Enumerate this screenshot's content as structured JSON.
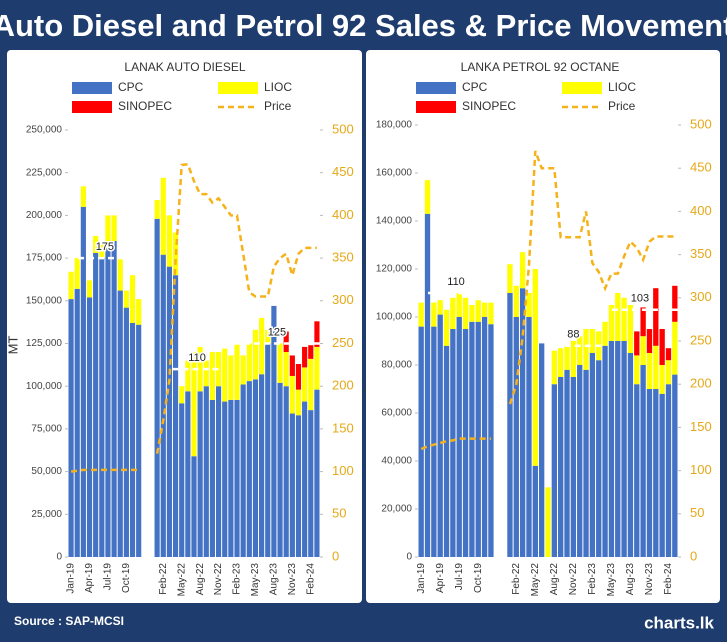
{
  "header": {
    "title": "Auto Diesel and Petrol 92 Sales & Price Movement"
  },
  "chart_data": [
    {
      "type": "bar",
      "stacked": true,
      "title": "LANAK AUTO DIESEL",
      "ylabel": "MT",
      "categories": [
        "Jan-19",
        null,
        null,
        "Apr-19",
        null,
        null,
        "Jul-19",
        null,
        null,
        "Oct-19",
        null,
        null,
        null,
        null,
        null,
        "Feb-22",
        null,
        null,
        "May-22",
        null,
        null,
        "Aug-22",
        null,
        null,
        "Nov-22",
        null,
        null,
        "Feb-23",
        null,
        null,
        "May-23",
        null,
        null,
        "Aug-23",
        null,
        null,
        "Nov-23",
        null,
        null,
        "Feb-24",
        null
      ],
      "series": [
        {
          "name": "CPC",
          "color": "#4472c4",
          "values": [
            151000,
            157000,
            205000,
            152000,
            178000,
            175000,
            183000,
            185000,
            156000,
            146000,
            137000,
            136000,
            null,
            null,
            198000,
            177000,
            170000,
            165000,
            90000,
            97000,
            59000,
            97000,
            100000,
            92000,
            100000,
            91000,
            92000,
            92000,
            101000,
            103000,
            104000,
            107000,
            125000,
            147000,
            102000,
            100000,
            84000,
            83000,
            91000,
            86000,
            98000
          ]
        },
        {
          "name": "LIOC",
          "color": "#ffff00",
          "values": [
            16000,
            18000,
            12000,
            10000,
            10000,
            10000,
            17000,
            15000,
            19000,
            10000,
            28000,
            15000,
            null,
            null,
            11000,
            45000,
            30000,
            25000,
            10000,
            18000,
            61000,
            26000,
            15000,
            28000,
            20000,
            31000,
            26000,
            33000,
            17000,
            22000,
            29000,
            33000,
            8000,
            0,
            23000,
            20000,
            22000,
            15000,
            20000,
            30000,
            25000
          ]
        },
        {
          "name": "SINOPEC",
          "color": "#ff0000",
          "values": [
            null,
            null,
            null,
            null,
            null,
            null,
            null,
            null,
            null,
            null,
            null,
            null,
            null,
            null,
            null,
            null,
            null,
            null,
            null,
            null,
            null,
            null,
            null,
            null,
            null,
            null,
            null,
            null,
            null,
            null,
            null,
            null,
            null,
            null,
            null,
            12000,
            12000,
            15000,
            12000,
            8000,
            15000
          ]
        },
        {
          "name": "Price",
          "type": "line",
          "dashed": true,
          "axis": "y2",
          "color": "#f5b21b",
          "values": [
            100,
            101,
            102,
            102,
            102,
            102,
            102,
            102,
            102,
            102,
            102,
            102,
            null,
            null,
            121,
            160,
            207,
            348,
            459,
            460,
            440,
            425,
            425,
            415,
            420,
            410,
            400,
            400,
            355,
            310,
            305,
            305,
            305,
            340,
            350,
            355,
            330,
            355,
            362,
            362,
            362
          ]
        }
      ],
      "ylim": [
        0,
        250000
      ],
      "yticks": [
        0,
        {
          "value": 25000,
          "label": "25,000"
        },
        {
          "value": 50000,
          "label": "50,000"
        },
        {
          "value": 75000,
          "label": "75,000"
        },
        {
          "value": 100000,
          "label": "100,000"
        },
        {
          "value": 125000,
          "label": "125,000"
        },
        {
          "value": 150000,
          "label": "150,000"
        },
        {
          "value": 175000,
          "label": "175,000"
        },
        {
          "value": 200000,
          "label": "200,000"
        },
        {
          "value": 225000,
          "label": "225,000"
        },
        {
          "value": 250000,
          "label": "250,000"
        }
      ],
      "y2lim": [
        0,
        500
      ],
      "y2ticks": [
        0,
        50,
        100,
        150,
        200,
        250,
        300,
        350,
        400,
        450,
        500
      ],
      "annotations": [
        {
          "value": 175000,
          "label": "175",
          "start": 0,
          "end": 11
        },
        {
          "value": 110000,
          "label": "110",
          "start": 17,
          "end": 24
        },
        {
          "value": 125000,
          "label": "125",
          "start": 27,
          "end": 40
        }
      ]
    },
    {
      "type": "bar",
      "stacked": true,
      "title": "LANKA PETROL 92 OCTANE",
      "categories": [
        "Jan-19",
        null,
        null,
        "Apr-19",
        null,
        null,
        "Jul-19",
        null,
        null,
        "Oct-19",
        null,
        null,
        null,
        null,
        null,
        "Feb-22",
        null,
        null,
        "May-22",
        null,
        null,
        "Aug-22",
        null,
        null,
        "Nov-22",
        null,
        null,
        "Feb-23",
        null,
        null,
        "May-23",
        null,
        null,
        "Aug-23",
        null,
        null,
        "Nov-23",
        null,
        null,
        "Feb-24",
        null
      ],
      "series": [
        {
          "name": "CPC",
          "color": "#4472c4",
          "values": [
            96000,
            143000,
            96000,
            101000,
            88000,
            95000,
            100000,
            95000,
            98000,
            98000,
            100000,
            97000,
            null,
            null,
            110000,
            100000,
            112000,
            100000,
            38000,
            89000,
            0,
            72000,
            75000,
            78000,
            75000,
            80000,
            78000,
            85000,
            82000,
            88000,
            90000,
            90000,
            90000,
            85000,
            72000,
            80000,
            70000,
            70000,
            68000,
            72000,
            76000
          ]
        },
        {
          "name": "LIOC",
          "color": "#ffff00",
          "values": [
            10000,
            14000,
            10000,
            6000,
            15000,
            13000,
            10000,
            13000,
            7000,
            9000,
            6000,
            9000,
            null,
            null,
            12000,
            13000,
            15000,
            10000,
            82000,
            0,
            29000,
            14000,
            12000,
            10000,
            15000,
            12000,
            17000,
            10000,
            12000,
            10000,
            15000,
            20000,
            18000,
            20000,
            12000,
            12000,
            15000,
            18000,
            12000,
            10000,
            22000
          ]
        },
        {
          "name": "SINOPEC",
          "color": "#ff0000",
          "values": [
            null,
            null,
            null,
            null,
            null,
            null,
            null,
            null,
            null,
            null,
            null,
            null,
            null,
            null,
            null,
            null,
            null,
            null,
            null,
            null,
            null,
            null,
            null,
            null,
            null,
            null,
            null,
            null,
            null,
            null,
            null,
            null,
            null,
            null,
            10000,
            12000,
            10000,
            24000,
            15000,
            5000,
            15000
          ]
        },
        {
          "name": "Price",
          "type": "line",
          "dashed": true,
          "axis": "y2",
          "color": "#f5b21b",
          "values": [
            125,
            128,
            130,
            132,
            134,
            135,
            137,
            137,
            137,
            137,
            137,
            137,
            null,
            null,
            177,
            200,
            254,
            338,
            470,
            450,
            450,
            450,
            370,
            370,
            370,
            370,
            400,
            340,
            330,
            311,
            328,
            328,
            348,
            365,
            358,
            344,
            365,
            371,
            371,
            371,
            371
          ]
        }
      ],
      "ylim": [
        0,
        180000
      ],
      "yticks": [
        0,
        {
          "value": 20000,
          "label": "20,000"
        },
        {
          "value": 40000,
          "label": "40,000"
        },
        {
          "value": 60000,
          "label": "60,000"
        },
        {
          "value": 80000,
          "label": "80,000"
        },
        {
          "value": 100000,
          "label": "100,000"
        },
        {
          "value": 120000,
          "label": "120,000"
        },
        {
          "value": 140000,
          "label": "140,000"
        },
        {
          "value": 160000,
          "label": "160,000"
        },
        {
          "value": 180000,
          "label": "180,000"
        }
      ],
      "y2lim": [
        0,
        500
      ],
      "y2ticks": [
        0,
        50,
        100,
        150,
        200,
        250,
        300,
        350,
        400,
        450,
        500
      ],
      "annotations": [
        {
          "value": 110000,
          "label": "110",
          "start": 0,
          "end": 11
        },
        {
          "value": 88000,
          "label": "88",
          "start": 20,
          "end": 28
        },
        {
          "value": 103000,
          "label": "103",
          "start": 29,
          "end": 40
        }
      ]
    }
  ],
  "footer": {
    "source": "Source : SAP-MCSI",
    "brand": "charts.lk"
  }
}
